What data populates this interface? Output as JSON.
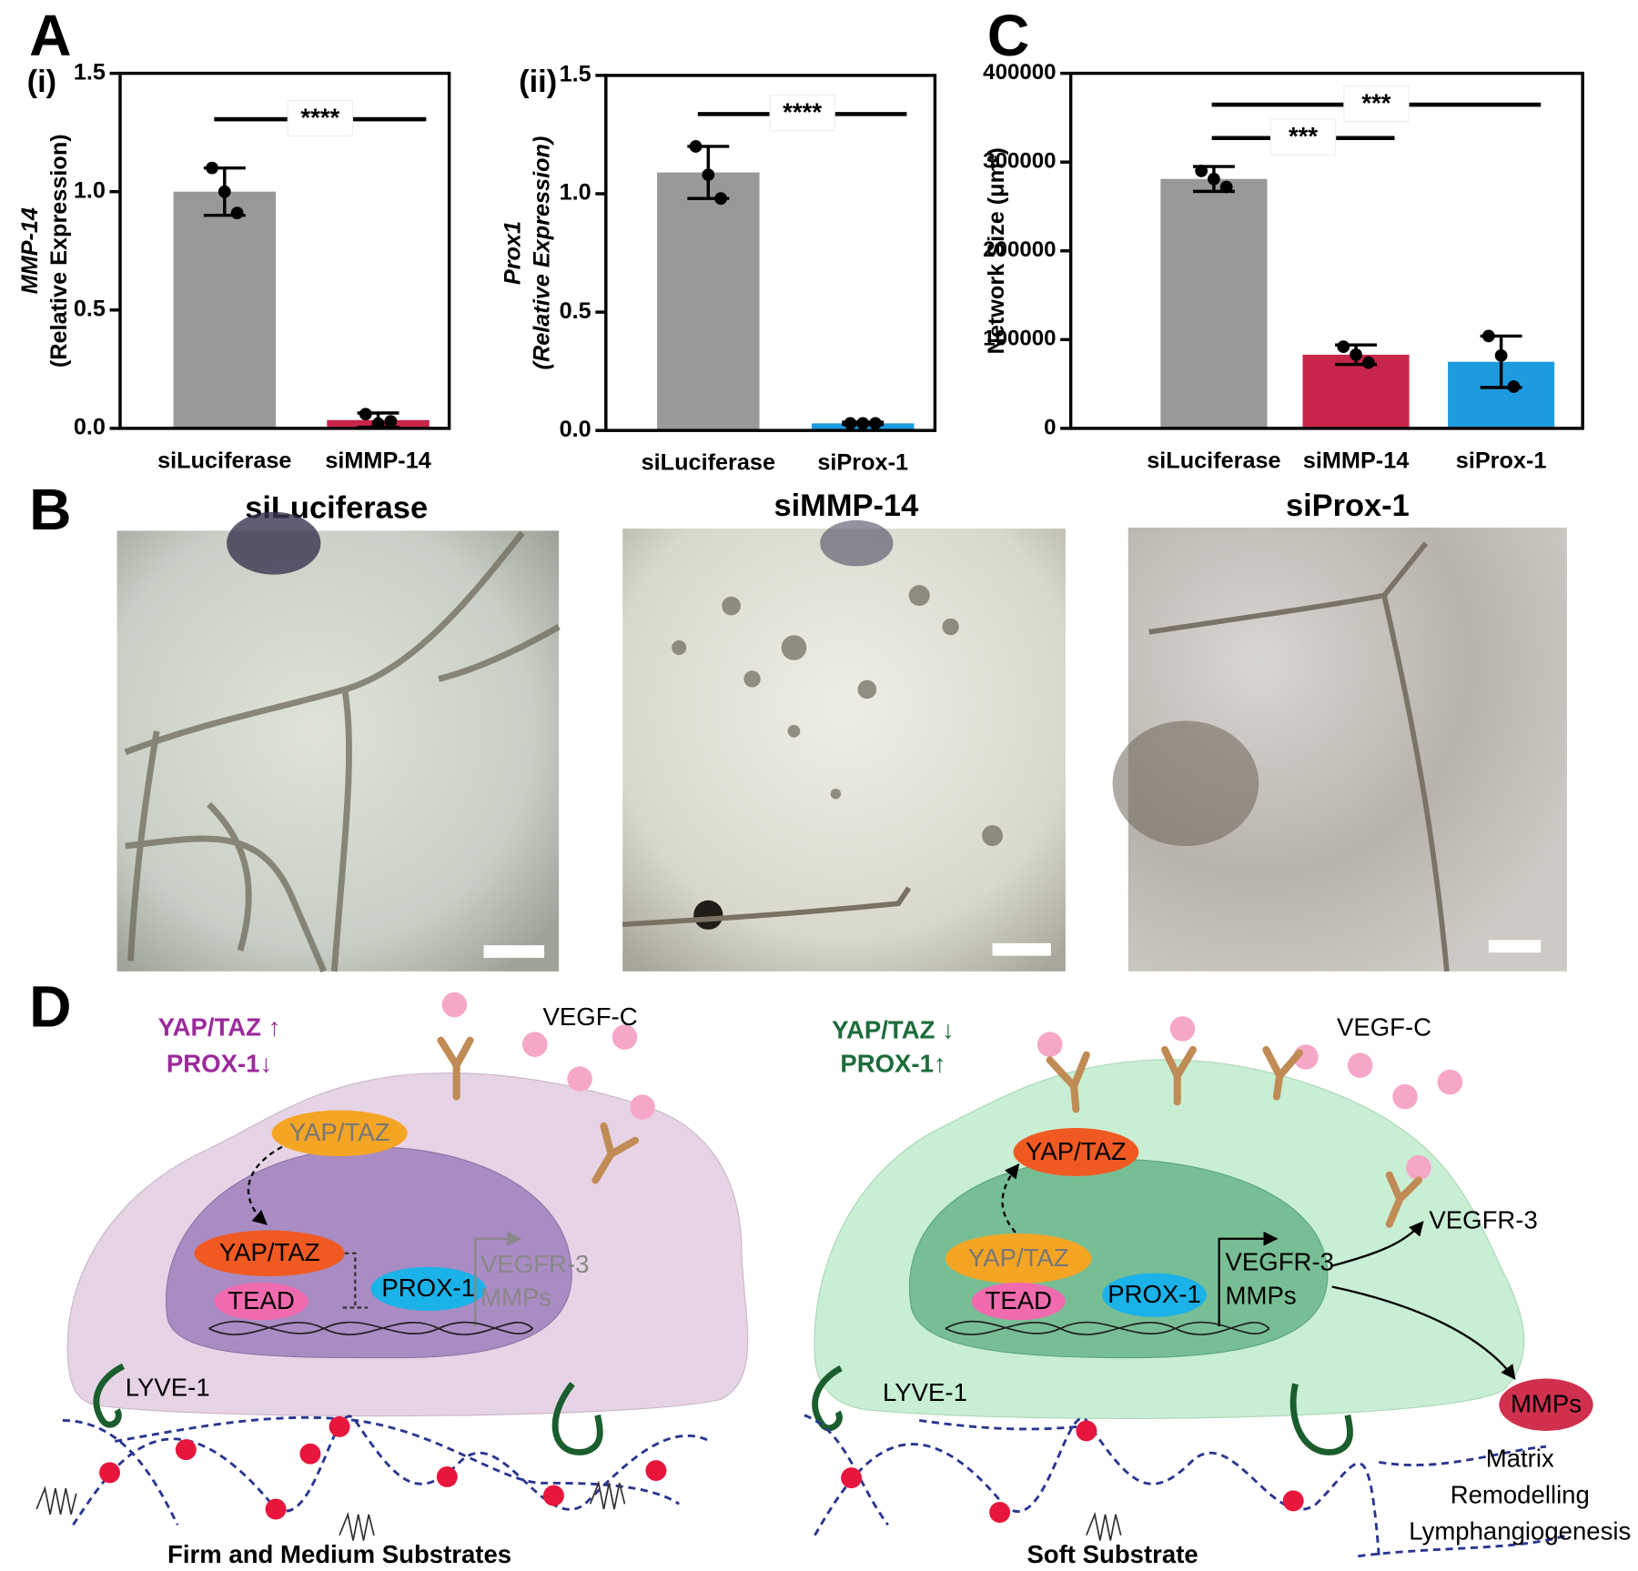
{
  "panel_labels": {
    "a": "A",
    "b": "B",
    "c": "C",
    "d": "D"
  },
  "chart_data": [
    {
      "type": "bar",
      "label": "(i)",
      "ylabel": [
        "MMP-14",
        "(Relative Expression)"
      ],
      "categories": [
        "siLuciferase",
        "siMMP-14"
      ],
      "values": [
        1.0,
        0.035
      ],
      "errors": [
        0.1,
        0.03
      ],
      "points": [
        [
          1.1,
          1.0,
          0.91
        ],
        [
          0.06,
          0.02,
          0.03
        ]
      ],
      "colors": [
        "#999999",
        "#c8254a"
      ],
      "ylim": [
        0,
        1.5
      ],
      "yticks": [
        {
          "value": 0,
          "label": "0.0"
        },
        {
          "value": 0.5,
          "label": "0.5"
        },
        {
          "value": 1,
          "label": "1.0"
        },
        {
          "value": 1.5,
          "label": "1.5"
        }
      ],
      "annotations": [
        "****"
      ]
    },
    {
      "type": "bar",
      "label": "(ii)",
      "ylabel": [
        "Prox1",
        "(Relative Expression)"
      ],
      "categories": [
        "siLuciferase",
        "siProx-1"
      ],
      "values": [
        1.09,
        0.03
      ],
      "errors": [
        0.11,
        0.005
      ],
      "points": [
        [
          1.2,
          1.08,
          0.98
        ],
        [
          0.03,
          0.03,
          0.03
        ]
      ],
      "colors": [
        "#999999",
        "#1e9be0"
      ],
      "ylim": [
        0,
        1.5
      ],
      "yticks": [
        {
          "value": 0,
          "label": "0.0"
        },
        {
          "value": 0.5,
          "label": "0.5"
        },
        {
          "value": 1,
          "label": "1.0"
        },
        {
          "value": 1.5,
          "label": "1.5"
        }
      ],
      "annotations": [
        "****"
      ]
    },
    {
      "type": "bar",
      "ylabel": [
        "Network Size (μm²)"
      ],
      "categories": [
        "siLuciferase",
        "siMMP-14",
        "siProx-1"
      ],
      "values": [
        281000,
        83000,
        75000
      ],
      "errors": [
        14000,
        11000,
        29000
      ],
      "points": [
        [
          290000,
          281000,
          272000
        ],
        [
          92000,
          83000,
          74000
        ],
        [
          104000,
          82000,
          47000
        ]
      ],
      "colors": [
        "#999999",
        "#c8254a",
        "#1e9be0"
      ],
      "ylim": [
        0,
        400000
      ],
      "yticks": [
        0,
        100000,
        200000,
        300000,
        400000
      ],
      "annotations": [
        "***",
        "***"
      ]
    }
  ],
  "images": [
    "siLuciferase",
    "siMMP-14",
    "siProx-1"
  ],
  "diagram": {
    "left": {
      "status": [
        "YAP/TAZ ↑",
        "PROX-1↓"
      ],
      "ligand": "VEGF-C",
      "cytoplasm": "YAP/TAZ",
      "nucleus": [
        "YAP/TAZ",
        "TEAD",
        "PROX-1"
      ],
      "targets": [
        "VEGFR-3",
        "MMPs"
      ],
      "receptor": "LYVE-1",
      "substrate": "Firm and Medium Substrates"
    },
    "right": {
      "status": [
        "YAP/TAZ ↓",
        "PROX-1↑"
      ],
      "ligand": "VEGF-C",
      "cytoplasm": "YAP/TAZ",
      "nucleus": [
        "YAP/TAZ",
        "TEAD",
        "PROX-1"
      ],
      "targets": [
        "VEGFR-3",
        "MMPs"
      ],
      "secreted": [
        "VEGFR-3",
        "MMPs"
      ],
      "receptor": "LYVE-1",
      "outcome": [
        "Matrix",
        "Remodelling",
        "Lymphangiogenesis"
      ],
      "substrate": "Soft Substrate"
    }
  }
}
